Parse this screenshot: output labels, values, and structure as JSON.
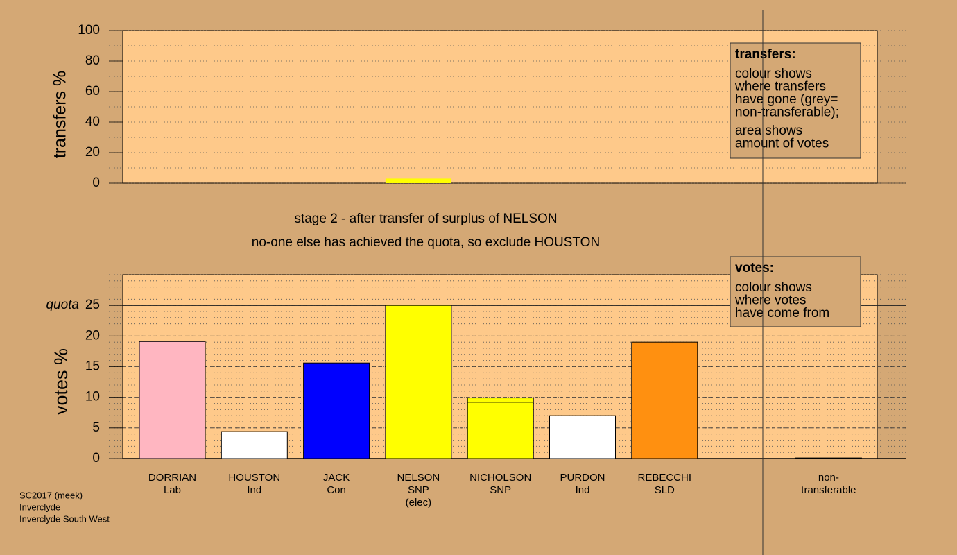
{
  "chart_data": [
    {
      "type": "bar",
      "ylabel": "transfers %",
      "ylim": [
        0,
        100
      ],
      "yticks": [
        0,
        20,
        40,
        60,
        80,
        100
      ],
      "values": [
        null,
        null,
        null,
        3,
        null,
        null,
        null,
        null
      ],
      "color": "#ffff00",
      "legend": {
        "title": "transfers:",
        "lines": [
          "colour shows",
          "where transfers",
          "have gone (grey=",
          "non-transferable);",
          "area shows",
          "amount of votes"
        ]
      }
    },
    {
      "type": "stacked_bar",
      "ylabel": "votes %",
      "ylim": [
        0,
        30
      ],
      "yticks": [
        0,
        5,
        10,
        15,
        20,
        25
      ],
      "quota": {
        "label": "quota",
        "value": 25
      },
      "categories": [
        [
          "DORRIAN",
          "Lab"
        ],
        [
          "HOUSTON",
          "Ind"
        ],
        [
          "JACK",
          "Con"
        ],
        [
          "NELSON",
          "SNP",
          "(elec)"
        ],
        [
          "NICHOLSON",
          "SNP"
        ],
        [
          "PURDON",
          "Ind"
        ],
        [
          "REBECCHI",
          "SLD"
        ],
        [
          "non-",
          "transferable"
        ]
      ],
      "series": [
        {
          "color": [
            "#ffb6c1",
            "#ffffff",
            "#0000ff",
            "#ffff00",
            "#ffff00",
            "#ffffff",
            "#ff9010",
            "#808080"
          ],
          "values": [
            19.1,
            4.4,
            15.6,
            25.0,
            9.2,
            7.0,
            19.0,
            0.1
          ]
        },
        {
          "color": "#ffff00",
          "values": [
            null,
            null,
            null,
            null,
            0.7,
            null,
            null,
            null
          ]
        }
      ],
      "legend": {
        "title": "votes:",
        "lines": [
          "colour shows",
          "where votes",
          "have come from"
        ]
      }
    }
  ],
  "stage_text": [
    "stage 2 - after transfer of surplus of NELSON",
    "no-one else has achieved the quota, so exclude HOUSTON"
  ],
  "footer": [
    "SC2017 (meek)",
    "Inverclyde",
    "Inverclyde South West"
  ]
}
